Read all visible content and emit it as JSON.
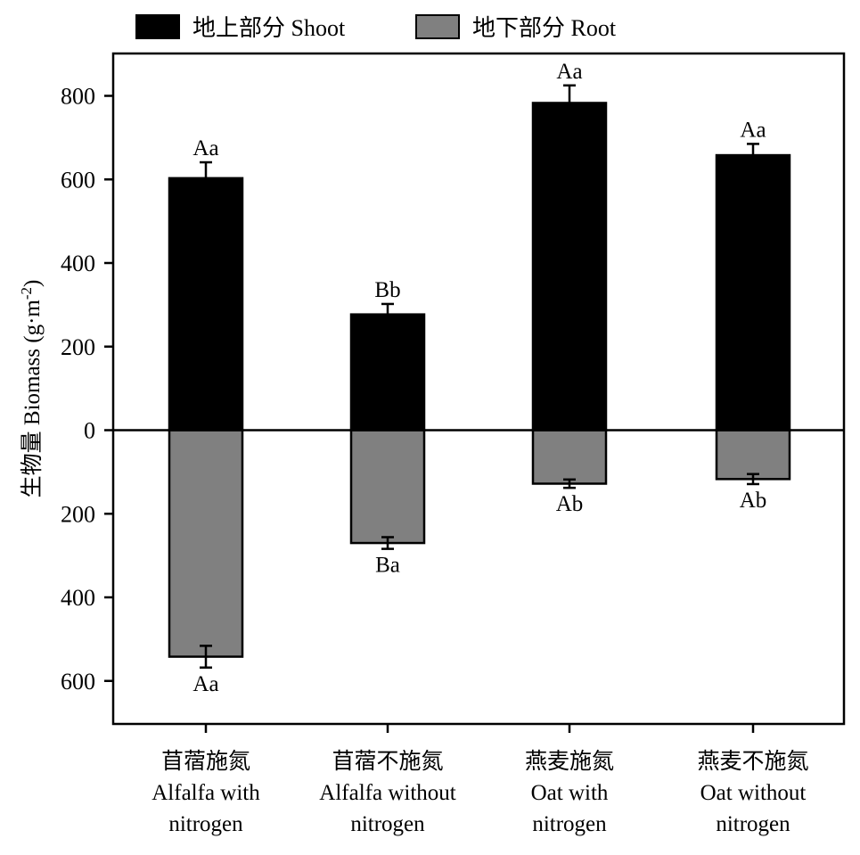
{
  "chart_data": {
    "type": "bar",
    "ylabel": "生物量 Biomass (g·m",
    "ylabel_sup": "-2",
    "ylabel_close": ")",
    "ylim": [
      -700,
      900
    ],
    "y_ticks": [
      800,
      600,
      400,
      200,
      0,
      -200,
      -400,
      -600
    ],
    "y_tick_labels": [
      "800",
      "600",
      "400",
      "200",
      "0",
      "200",
      "400",
      "600"
    ],
    "grid": false,
    "legend_position": "top",
    "categories": [
      [
        "苜蓿施氮",
        "Alfalfa with",
        "nitrogen"
      ],
      [
        "苜蓿不施氮",
        "Alfalfa without",
        "nitrogen"
      ],
      [
        "燕麦施氮",
        "Oat with",
        "nitrogen"
      ],
      [
        "燕麦不施氮",
        "Oat without",
        "nitrogen"
      ]
    ],
    "series": [
      {
        "name": "地上部分 Shoot",
        "color": "#000000",
        "values": [
          603,
          277,
          783,
          658
        ],
        "errors": [
          38,
          25,
          42,
          27
        ],
        "labels": [
          "Aa",
          "Bb",
          "Aa",
          "Aa"
        ]
      },
      {
        "name": "地下部分 Root",
        "color": "#808080",
        "values": [
          -542,
          -270,
          -128,
          -117
        ],
        "errors": [
          26,
          14,
          10,
          12
        ],
        "labels": [
          "Aa",
          "Ba",
          "Ab",
          "Ab"
        ]
      }
    ]
  }
}
